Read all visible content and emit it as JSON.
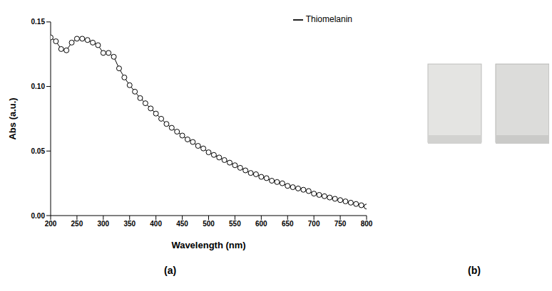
{
  "chart_data": {
    "type": "line",
    "panel_label": "(a)",
    "x_label": "Wavelength (nm)",
    "y_label": "Abs (a.u.)",
    "x": [
      200,
      210,
      220,
      230,
      240,
      250,
      260,
      270,
      280,
      290,
      300,
      310,
      320,
      330,
      340,
      350,
      360,
      370,
      380,
      390,
      400,
      410,
      420,
      430,
      440,
      450,
      460,
      470,
      480,
      490,
      500,
      510,
      520,
      530,
      540,
      550,
      560,
      570,
      580,
      590,
      600,
      610,
      620,
      630,
      640,
      650,
      660,
      670,
      680,
      690,
      700,
      710,
      720,
      730,
      740,
      750,
      760,
      770,
      780,
      790,
      800
    ],
    "series": [
      {
        "name": "Thiomelanin",
        "color": "#000000",
        "marker": "circle",
        "line_style": "solid",
        "values": [
          0.138,
          0.135,
          0.129,
          0.128,
          0.134,
          0.137,
          0.137,
          0.136,
          0.134,
          0.132,
          0.126,
          0.126,
          0.123,
          0.114,
          0.107,
          0.101,
          0.096,
          0.091,
          0.087,
          0.083,
          0.079,
          0.075,
          0.071,
          0.068,
          0.065,
          0.062,
          0.059,
          0.057,
          0.054,
          0.052,
          0.049,
          0.047,
          0.045,
          0.043,
          0.041,
          0.039,
          0.037,
          0.035,
          0.033,
          0.032,
          0.03,
          0.029,
          0.027,
          0.026,
          0.025,
          0.023,
          0.022,
          0.021,
          0.02,
          0.019,
          0.017,
          0.016,
          0.015,
          0.014,
          0.013,
          0.012,
          0.011,
          0.01,
          0.009,
          0.008,
          0.007
        ]
      }
    ],
    "xlim": [
      200,
      800
    ],
    "xticks": [
      200,
      250,
      300,
      350,
      400,
      450,
      500,
      550,
      600,
      650,
      700,
      750,
      800
    ],
    "ylim": [
      0,
      0.15
    ],
    "yticks": [
      {
        "value": 0,
        "label": "0.00"
      },
      0.05,
      {
        "value": 0.1,
        "label": "0.10"
      },
      {
        "value": 0.15,
        "label": "0.15"
      }
    ],
    "grid": false,
    "legend": "upper right"
  },
  "image": {
    "panel_label": "(b)"
  }
}
